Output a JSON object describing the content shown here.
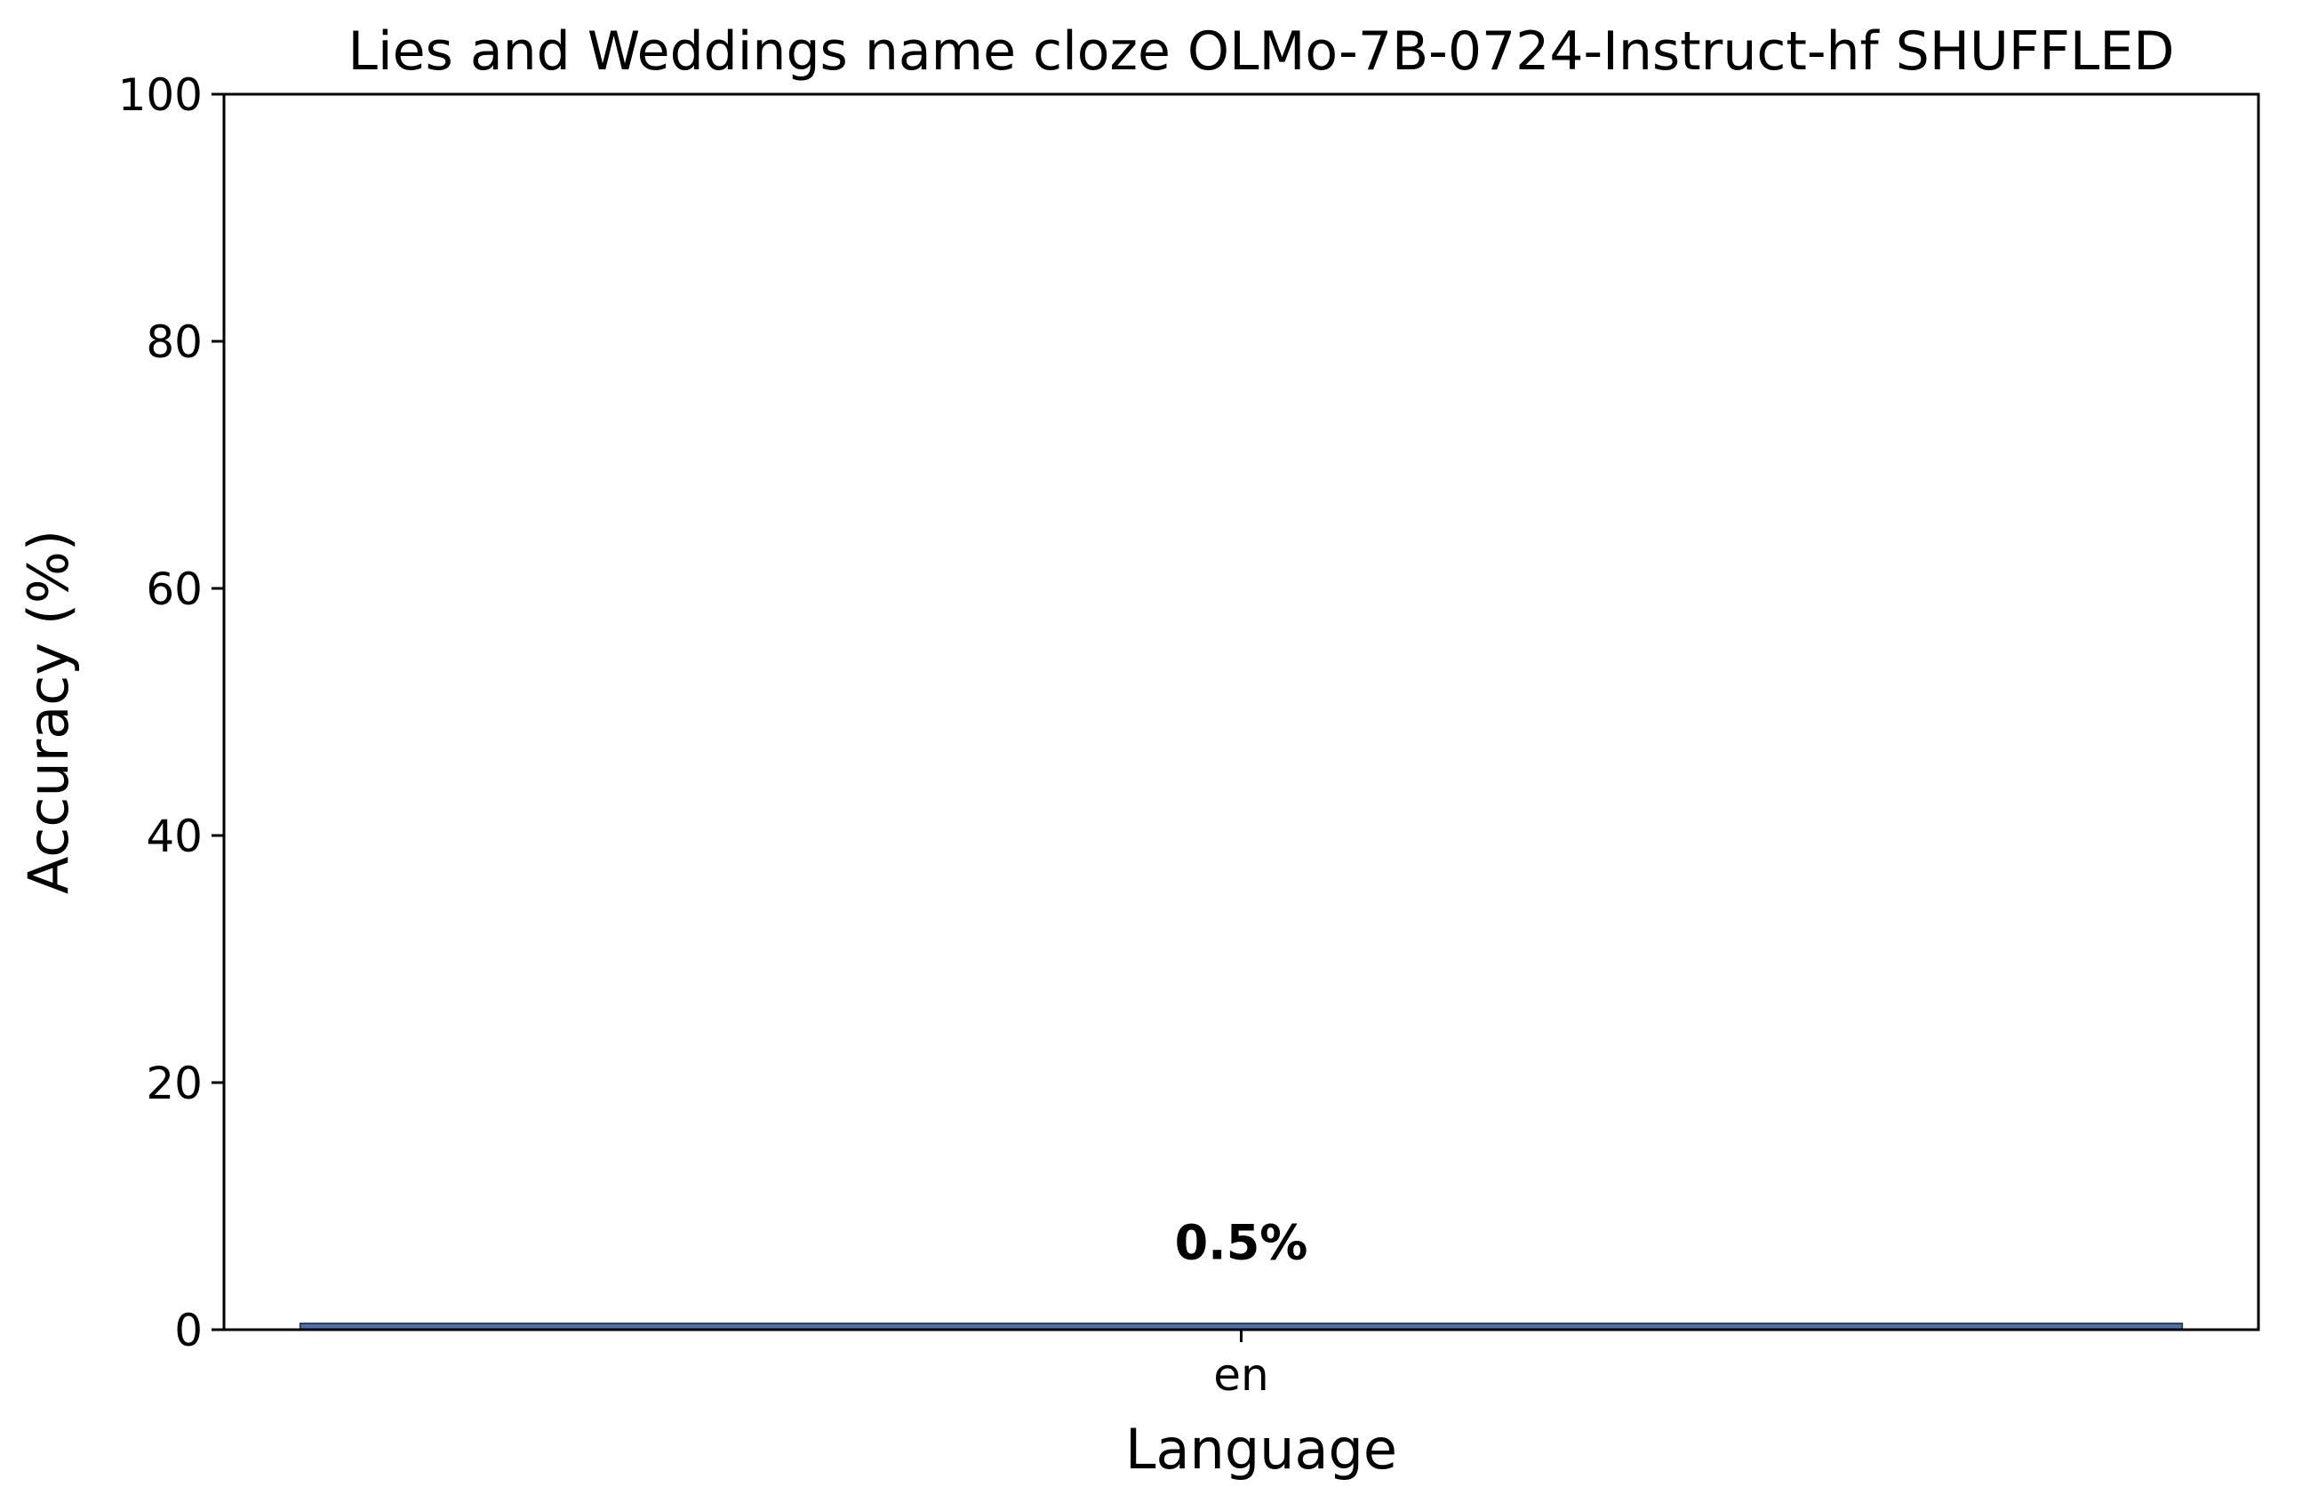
{
  "chart_data": {
    "type": "bar",
    "title": "Lies and Weddings name cloze OLMo-7B-0724-Instruct-hf SHUFFLED",
    "xlabel": "Language",
    "ylabel": "Accuracy (%)",
    "categories": [
      "en"
    ],
    "values": [
      0.5
    ],
    "data_labels": [
      "0.5%"
    ],
    "ylim": [
      0,
      100
    ],
    "yticks": [
      0,
      20,
      40,
      60,
      80,
      100
    ],
    "ytick_labels": [
      "0",
      "20",
      "40",
      "60",
      "80",
      "100"
    ],
    "grid": false,
    "legend": false,
    "colors": {
      "bar": "#4c72b0",
      "bar_edge": "#2f3e55",
      "axes": "#000000"
    }
  }
}
